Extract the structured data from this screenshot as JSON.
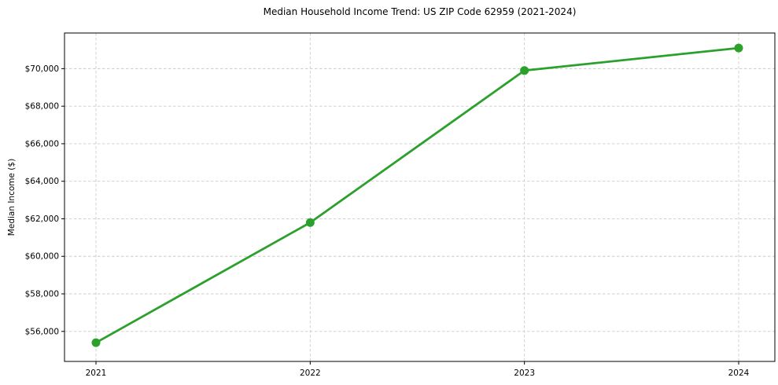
{
  "figure": {
    "background": "#ffffff"
  },
  "chart_data": {
    "type": "line",
    "title": "Median Household Income Trend: US ZIP Code 62959 (2021-2024)",
    "xlabel": "",
    "ylabel": "Median Income ($)",
    "categories": [
      "2021",
      "2022",
      "2023",
      "2024"
    ],
    "series": [
      {
        "color": "#2ca02c",
        "values": [
          55400,
          61800,
          69900,
          71100
        ]
      }
    ],
    "yticks": [
      56000,
      58000,
      60000,
      62000,
      64000,
      66000,
      68000,
      70000
    ],
    "ytick_labels": [
      "$56,000",
      "$58,000",
      "$60,000",
      "$62,000",
      "$64,000",
      "$66,000",
      "$68,000",
      "$70,000"
    ],
    "ylim": [
      54400,
      71900
    ],
    "grid": true,
    "legend_position": "none",
    "styles": {
      "grid_color": "#cccccc",
      "axis_color": "#000000",
      "text_color": "#000000",
      "marker": "circle",
      "marker_radius": 5.5,
      "line_width": 2.8
    }
  }
}
